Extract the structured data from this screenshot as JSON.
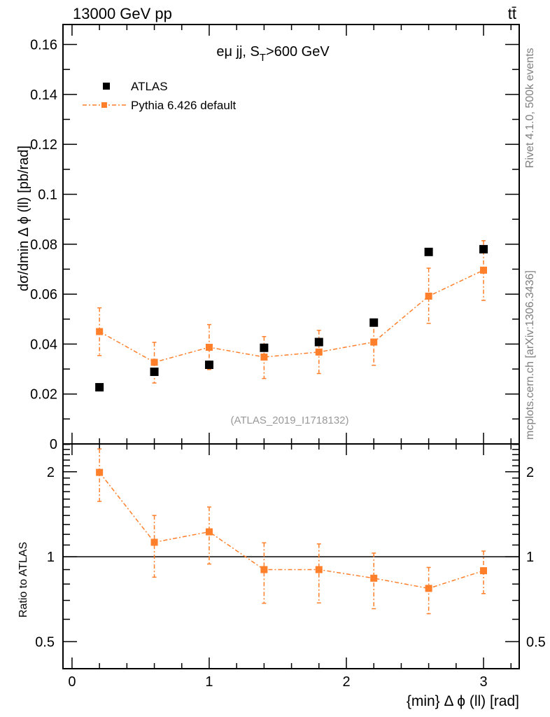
{
  "header": {
    "left": "13000 GeV pp",
    "right": "tt̄"
  },
  "side_labels": {
    "top": "Rivet 4.1.0,  500k events",
    "bottom": "mcplots.cern.ch [arXiv:1306.3436]"
  },
  "colors": {
    "atlas": "#000000",
    "pythia": "#ff7f2a"
  },
  "chart_data": [
    {
      "type": "scatter",
      "title": "eμ jj, S_T>600 GeV",
      "title_main": "eμ jj, S",
      "title_sub": "T",
      "title_tail": ">600 GeV",
      "annotation": "(ATLAS_2019_I1718132)",
      "xlabel": "{min} Δ ϕ (ll) [rad]",
      "ylabel": "dσ/dmin Δ ϕ (ll) [pb/rad]",
      "xlim": [
        -0.066,
        3.26
      ],
      "ylim": [
        0,
        0.168
      ],
      "yticks": [
        0,
        0.02,
        0.04,
        0.06,
        0.08,
        0.1,
        0.12,
        0.14,
        0.16
      ],
      "ytick_labels": [
        "0",
        "0.02",
        "0.04",
        "0.06",
        "0.08",
        "0.1",
        "0.12",
        "0.14",
        "0.16"
      ],
      "legend": {
        "placement": "top-left",
        "entries": [
          "ATLAS",
          "Pythia 6.426 default"
        ]
      },
      "x": [
        0.2,
        0.6,
        1.0,
        1.4,
        1.8,
        2.2,
        2.6,
        3.0
      ],
      "series": [
        {
          "name": "ATLAS",
          "values": [
            0.0227,
            0.0289,
            0.0317,
            0.0385,
            0.0408,
            0.0486,
            0.0769,
            0.078
          ]
        },
        {
          "name": "Pythia 6.426 default",
          "values": [
            0.045,
            0.0327,
            0.0387,
            0.0348,
            0.0368,
            0.0408,
            0.0592,
            0.0696
          ],
          "err_up": [
            0.0545,
            0.0407,
            0.0478,
            0.043,
            0.0455,
            0.05,
            0.0704,
            0.0814
          ],
          "err_low": [
            0.0354,
            0.0244,
            0.0298,
            0.0262,
            0.0282,
            0.0315,
            0.0483,
            0.0575
          ]
        }
      ]
    },
    {
      "type": "scatter",
      "ylabel": "Ratio to ATLAS",
      "xlabel": "{min} Δ ϕ (ll) [rad]",
      "yscale": "log",
      "xlim": [
        -0.066,
        3.26
      ],
      "ylim": [
        0.401,
        2.51
      ],
      "yticks": [
        0.5,
        1,
        2
      ],
      "ytick_labels": [
        "0.5",
        "1",
        "2"
      ],
      "xticks": [
        0,
        1,
        2,
        3
      ],
      "xtick_labels": [
        "0",
        "1",
        "2",
        "3"
      ],
      "reference_line": 1,
      "x": [
        0.2,
        0.6,
        1.0,
        1.4,
        1.8,
        2.2,
        2.6,
        3.0
      ],
      "series": [
        {
          "name": "Pythia 6.426 default",
          "values": [
            1.99,
            1.125,
            1.225,
            0.9,
            0.9,
            0.839,
            0.772,
            0.892
          ],
          "err_up": [
            2.41,
            1.4,
            1.5,
            1.12,
            1.11,
            1.03,
            0.916,
            1.047
          ],
          "err_low": [
            1.57,
            0.846,
            0.942,
            0.684,
            0.686,
            0.654,
            0.628,
            0.74
          ]
        }
      ]
    }
  ]
}
